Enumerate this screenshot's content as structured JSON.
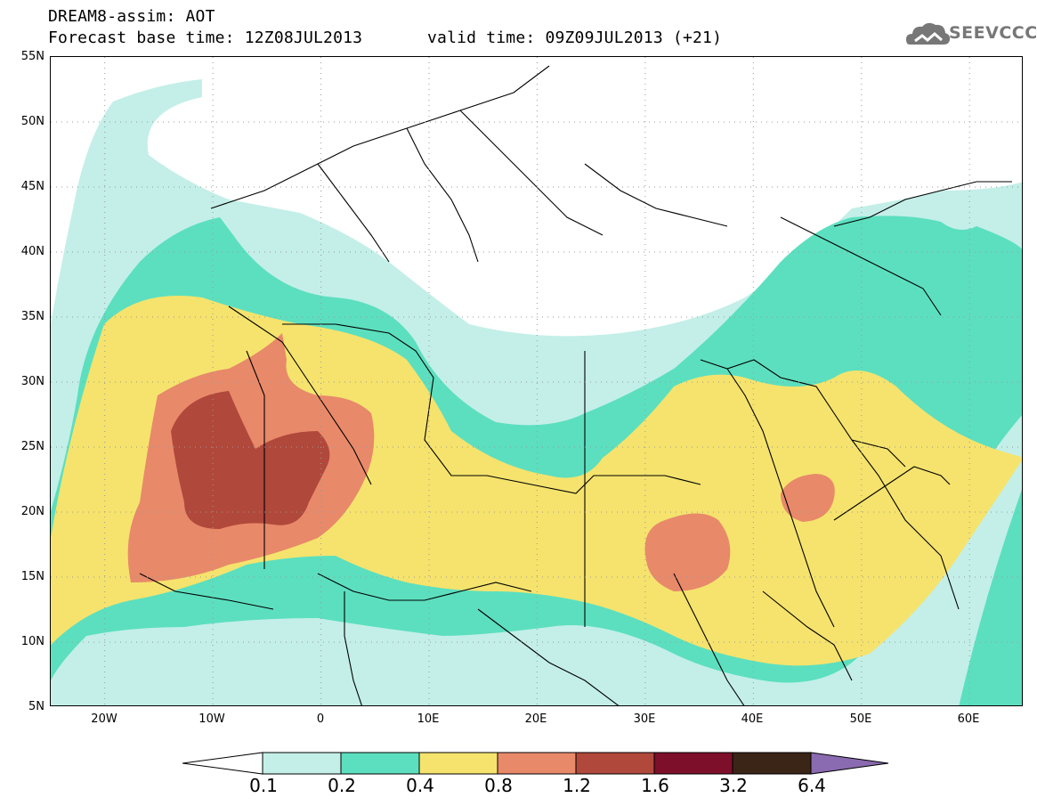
{
  "header": {
    "line1": "DREAM8-assim: AOT",
    "base_time": "Forecast base time: 12Z08JUL2013",
    "valid_time": "valid time: 09Z09JUL2013 (+21)",
    "logo_text": "SEEVCCC"
  },
  "map": {
    "variable": "AOT",
    "lat_labels": [
      "55N",
      "50N",
      "45N",
      "40N",
      "35N",
      "30N",
      "25N",
      "20N",
      "15N",
      "10N",
      "5N"
    ],
    "lon_labels": [
      "20W",
      "10W",
      "0",
      "10E",
      "20E",
      "30E",
      "40E",
      "50E",
      "60E"
    ],
    "lon_range": [
      -25,
      65
    ],
    "lat_range": [
      5,
      55
    ]
  },
  "colorbar": {
    "labels": [
      "0.1",
      "0.2",
      "0.4",
      "0.8",
      "1.2",
      "1.6",
      "3.2",
      "6.4"
    ],
    "colors": [
      "#c3efe8",
      "#5cdfbf",
      "#f5e36d",
      "#e8896a",
      "#b0483b",
      "#7e0f2a",
      "#3a2516",
      "#8a6ab0"
    ]
  }
}
